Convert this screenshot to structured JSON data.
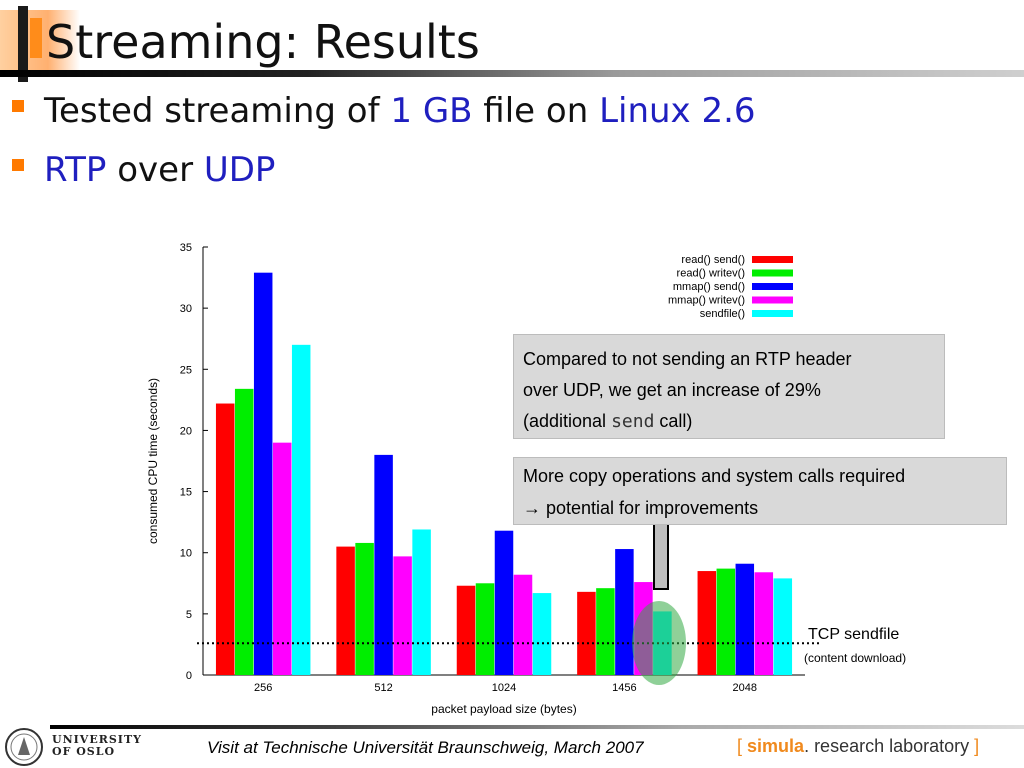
{
  "slide": {
    "title": "Streaming: Results",
    "bullets": [
      {
        "parts": [
          "Tested streaming of ",
          "1 GB",
          " file on ",
          "Linux 2.6"
        ]
      },
      {
        "parts": [
          "RTP",
          " over ",
          "UDP"
        ]
      }
    ],
    "accent_color": "#ff7a00",
    "highlight_color": "#1f1fbf"
  },
  "callouts": {
    "top": {
      "line1": "Compared to not sending an RTP header",
      "line2": "over UDP, we get an increase of 29%",
      "line3_a": "(additional ",
      "line3_code": "send",
      "line3_b": " call)"
    },
    "bottom": {
      "line1": "More copy operations and system calls required",
      "line2": "→ potential for improvements"
    }
  },
  "tcp_label": {
    "title": "TCP sendfile",
    "sub": "(content download)"
  },
  "footer": {
    "text": "Visit at Technische Universität Braunschweig, March 2007",
    "university_line1": "UNIVERSITY",
    "university_line2": "OF OSLO",
    "lab_open": "[",
    "lab_brand": "simula",
    "lab_rest": ". research laboratory",
    "lab_close": "]"
  },
  "chart_data": {
    "type": "bar",
    "categories": [
      "256",
      "512",
      "1024",
      "1456",
      "2048"
    ],
    "xlabel": "packet payload size (bytes)",
    "ylabel": "consumed CPU time (seconds)",
    "ylim": [
      0,
      35
    ],
    "yticks": [
      0,
      5,
      10,
      15,
      20,
      25,
      30,
      35
    ],
    "legend_position": "top-right",
    "series": [
      {
        "name": "read() send()",
        "color": "#ff0000",
        "values": [
          22.2,
          10.5,
          7.3,
          6.8,
          8.5
        ]
      },
      {
        "name": "read() writev()",
        "color": "#00ee00",
        "values": [
          23.4,
          10.8,
          7.5,
          7.1,
          8.7
        ]
      },
      {
        "name": "mmap() send()",
        "color": "#0000ff",
        "values": [
          32.9,
          18.0,
          11.8,
          10.3,
          9.1
        ]
      },
      {
        "name": "mmap() writev()",
        "color": "#ff00ff",
        "values": [
          19.0,
          9.7,
          8.2,
          7.6,
          8.4
        ]
      },
      {
        "name": "sendfile()",
        "color": "#00ffff",
        "values": [
          27.0,
          11.9,
          6.7,
          5.2,
          7.9
        ]
      }
    ],
    "reference_line": {
      "value": 2.6
    }
  }
}
